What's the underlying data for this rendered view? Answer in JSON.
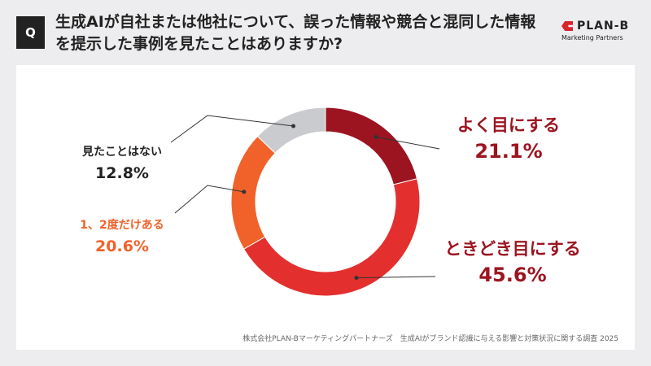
{
  "header": {
    "q_badge": "Q",
    "title": "生成AIが自社または他社について、誤った情報や競合と混同した情報を提示した事例を見たことはありますか?",
    "logo_name": "PLAN-B",
    "logo_sub": "Marketing Partners"
  },
  "colors": {
    "often": "#9c1420",
    "sometimes": "#e3302f",
    "once": "#f0622a",
    "never": "#c9cbce"
  },
  "chart_data": {
    "type": "pie",
    "donut": true,
    "title": "",
    "categories": [
      "よく目にする",
      "ときどき目にする",
      "1、2度だけある",
      "見たことはない"
    ],
    "values": [
      21.1,
      45.6,
      20.6,
      12.8
    ],
    "labels": [
      "21.1%",
      "45.6%",
      "20.6%",
      "12.8%"
    ]
  },
  "source": "株式会社PLAN-Bマーケティングパートナーズ　生成AIがブランド認識に与える影響と対策状況に関する調査 2025"
}
